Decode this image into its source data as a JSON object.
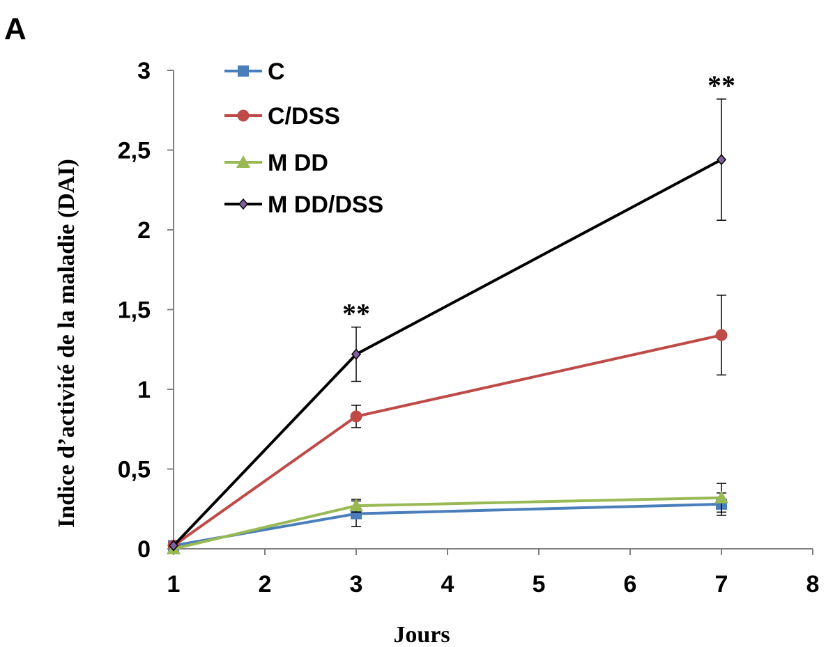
{
  "chart_data": {
    "type": "line",
    "panel_label": "A",
    "xlabel": "Jours",
    "ylabel": "Indice d’activité de la maladie (DAI)",
    "x": [
      1,
      3,
      7
    ],
    "xlim": [
      1,
      8
    ],
    "ylim": [
      0,
      3
    ],
    "x_ticks": [
      "1",
      "2",
      "3",
      "4",
      "5",
      "6",
      "7",
      "8"
    ],
    "y_ticks": [
      "0",
      "0,5",
      "1",
      "1,5",
      "2",
      "2,5",
      "3"
    ],
    "grid": false,
    "legend_position": "top-left",
    "series": [
      {
        "name": "C",
        "values": [
          0.02,
          0.22,
          0.28
        ],
        "errors": [
          0,
          0.08,
          0.07
        ],
        "color": "#4a7ebb",
        "marker": "square"
      },
      {
        "name": "C/DSS",
        "values": [
          0.02,
          0.83,
          1.34
        ],
        "errors": [
          0,
          0.07,
          0.25
        ],
        "color": "#be4b48",
        "marker": "circle"
      },
      {
        "name": "M DD",
        "values": [
          0.0,
          0.27,
          0.32
        ],
        "errors": [
          0,
          0.04,
          0.09
        ],
        "color": "#98b954",
        "marker": "triangle"
      },
      {
        "name": "M DD/DSS",
        "values": [
          0.02,
          1.22,
          2.44
        ],
        "errors": [
          0,
          0.17,
          0.38
        ],
        "color": "#000000",
        "marker": "diamond",
        "marker_color": "#7f609c"
      }
    ],
    "annotations": [
      {
        "text": "**",
        "x": 3
      },
      {
        "text": "**",
        "x": 7
      }
    ]
  }
}
